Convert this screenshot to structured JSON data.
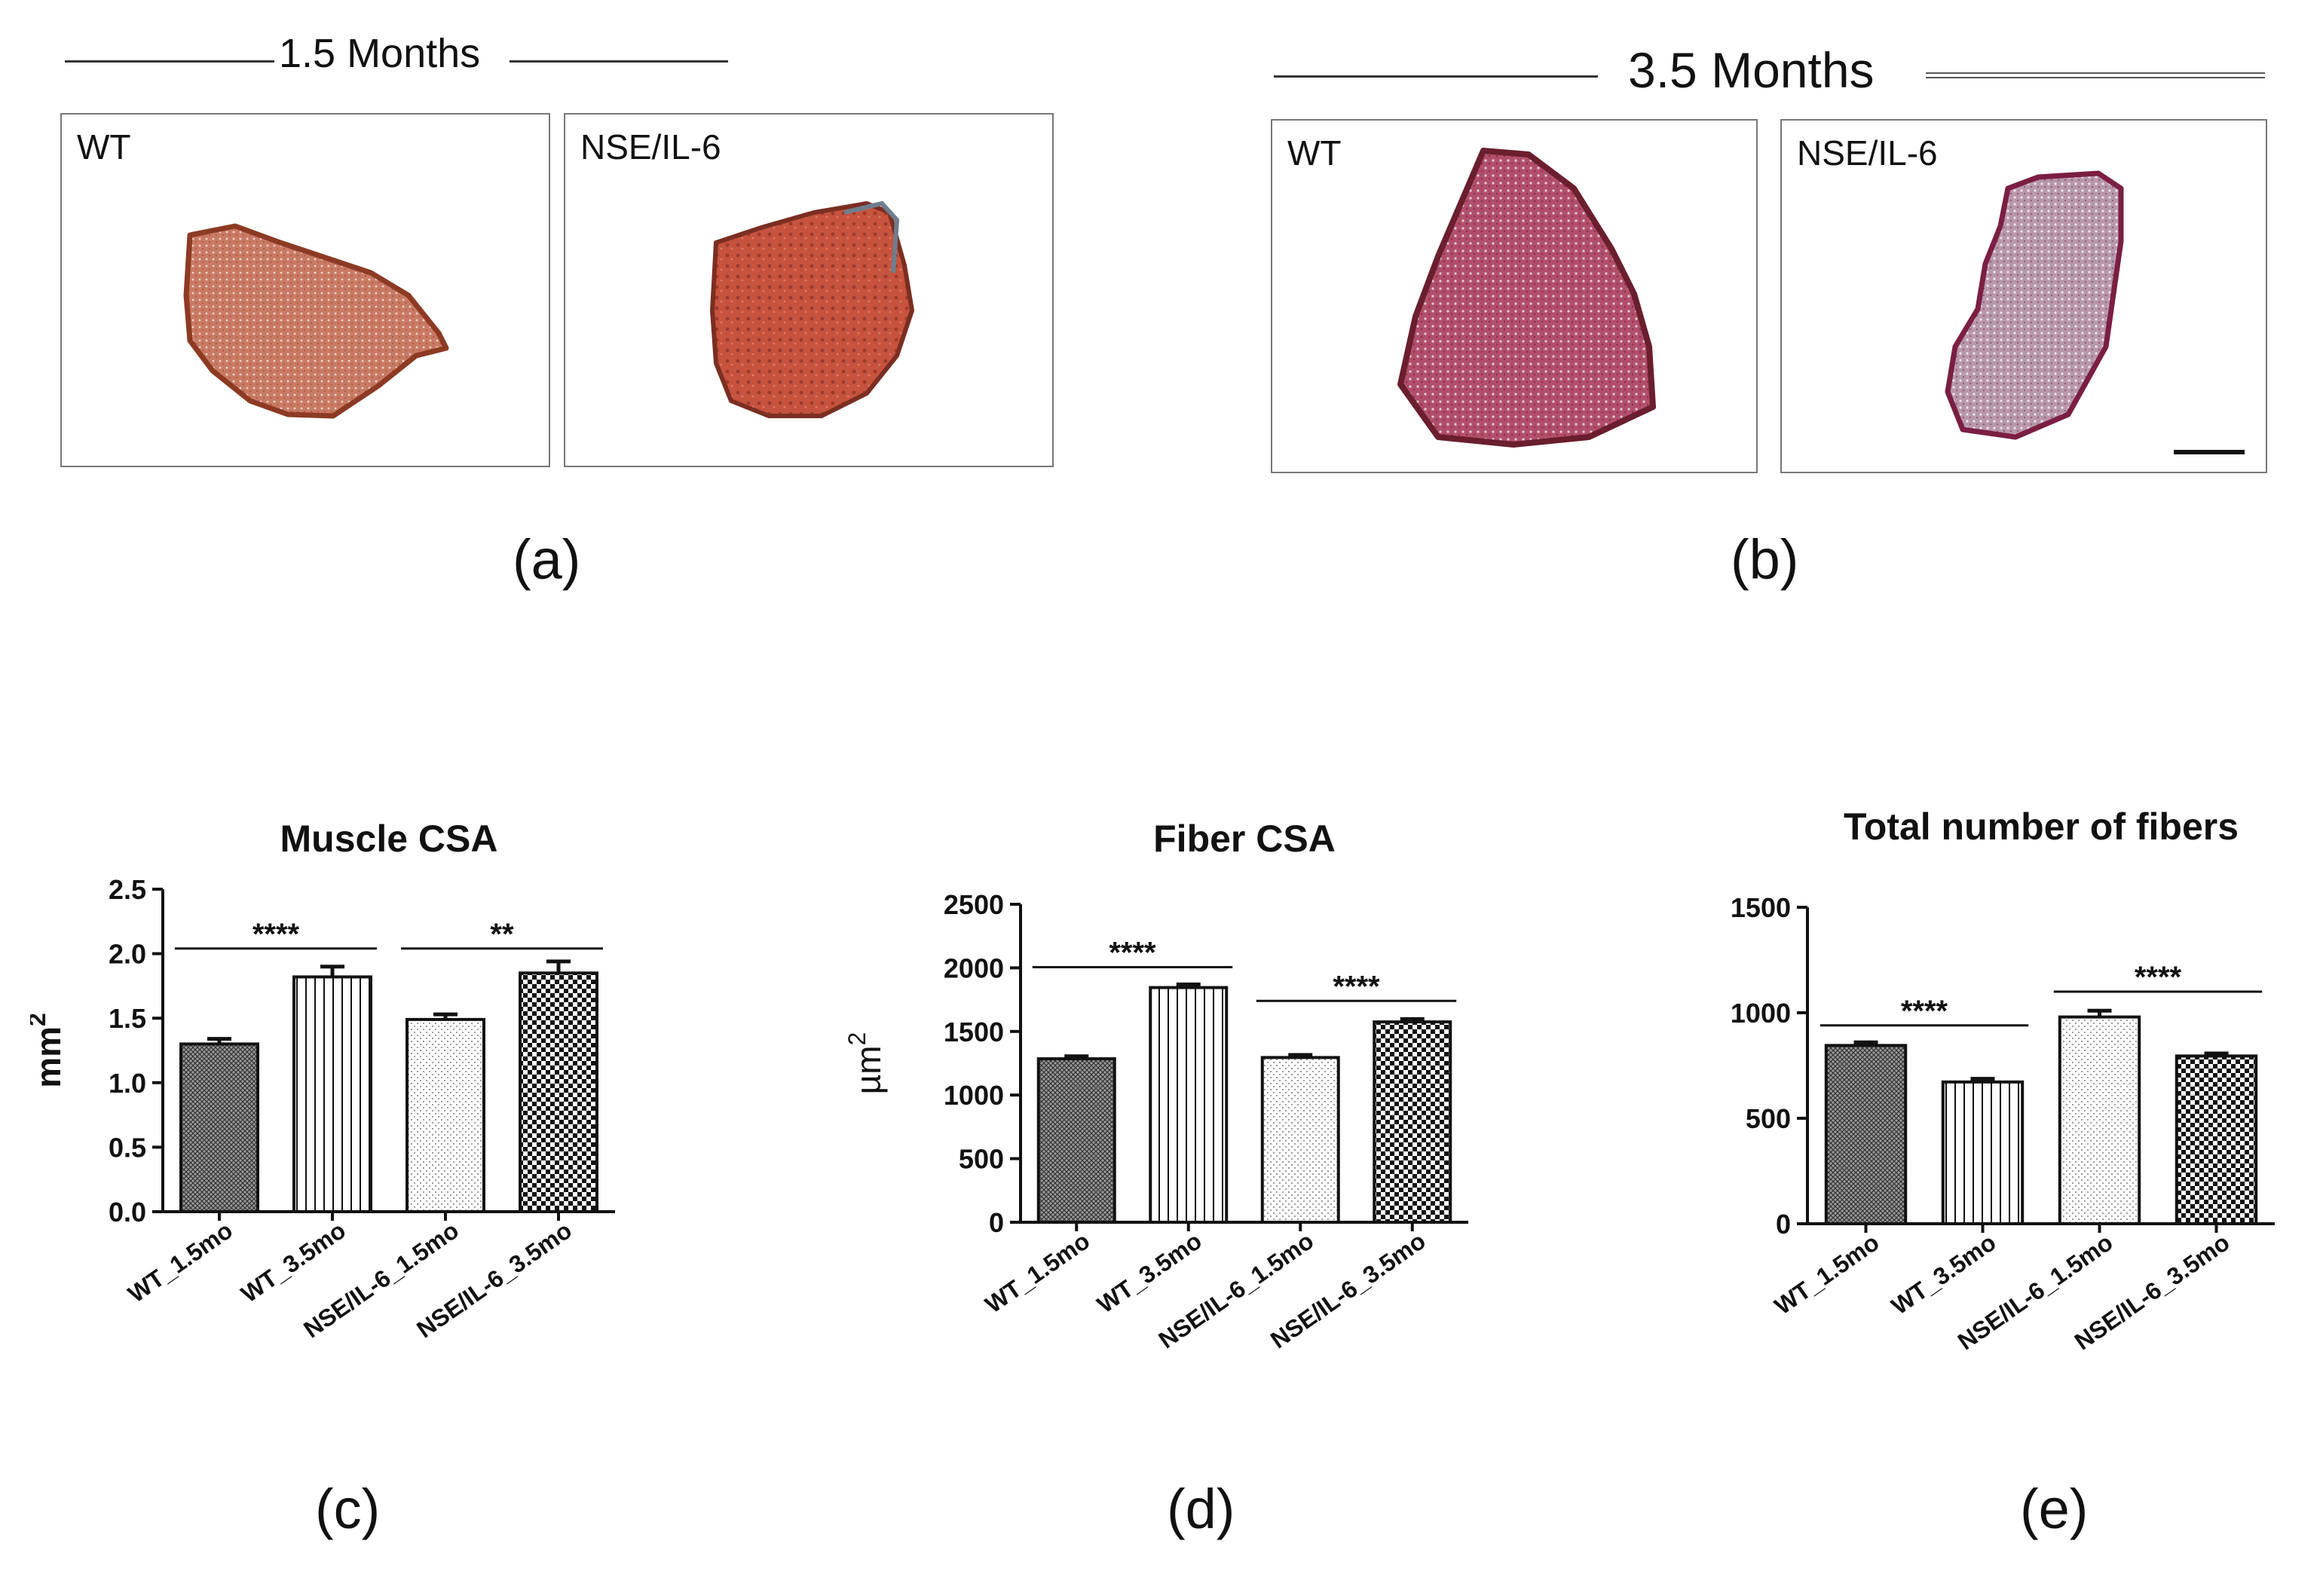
{
  "figure": {
    "panel_a": {
      "header": "1.5 Months",
      "images": [
        {
          "label": "WT",
          "description": "WT muscle section 1.5 months"
        },
        {
          "label": "NSE/IL-6",
          "description": "NSE/IL-6 muscle section 1.5 months"
        }
      ],
      "sublabel": "(a)"
    },
    "panel_b": {
      "header": "3.5 Months",
      "images": [
        {
          "label": "WT",
          "description": "WT muscle section 3.5 months"
        },
        {
          "label": "NSE/IL-6",
          "description": "NSE/IL-6 muscle section 3.5 months"
        }
      ],
      "sublabel": "(b)"
    },
    "sublabels": {
      "c": "(c)",
      "d": "(d)",
      "e": "(e)"
    }
  },
  "colors": {
    "bar_fill": "#ffffff",
    "bar_stroke": "#111111",
    "tissue_a": "#c46a50",
    "tissue_b": "#a7455f"
  },
  "chart_data": [
    {
      "id": "c",
      "type": "bar",
      "title": "Muscle CSA",
      "xlabel": "",
      "ylabel": "mm2",
      "ylabel_base": "mm",
      "ylabel_sup": "2",
      "categories": [
        "WT_1.5mo",
        "WT_3.5mo",
        "NSE/IL-6_1.5mo",
        "NSE/IL-6_3.5mo"
      ],
      "values": [
        1.3,
        1.82,
        1.49,
        1.85
      ],
      "errors": [
        0.04,
        0.08,
        0.04,
        0.09
      ],
      "patterns": [
        "fine-crosshatch",
        "vertical-lines",
        "dots",
        "checker"
      ],
      "ylim": [
        0,
        2.5
      ],
      "yticks": [
        0.0,
        0.5,
        1.0,
        1.5,
        2.0,
        2.5
      ],
      "ytick_labels": [
        "0.0",
        "0.5",
        "1.0",
        "1.5",
        "2.0",
        "2.5"
      ],
      "significance": [
        {
          "from": 0,
          "to": 1,
          "y": 2.04,
          "label": "****"
        },
        {
          "from": 2,
          "to": 3,
          "y": 2.04,
          "label": "**"
        }
      ]
    },
    {
      "id": "d",
      "type": "bar",
      "title": "Fiber CSA",
      "xlabel": "",
      "ylabel": "µm2",
      "ylabel_base": "µm",
      "ylabel_sup": "2",
      "categories": [
        "WT_1.5mo",
        "WT_3.5mo",
        "NSE/IL-6_1.5mo",
        "NSE/IL-6_3.5mo"
      ],
      "values": [
        1285,
        1845,
        1295,
        1575
      ],
      "errors": [
        20,
        25,
        20,
        22
      ],
      "patterns": [
        "fine-crosshatch",
        "vertical-lines",
        "dots",
        "checker"
      ],
      "ylim": [
        0,
        2500
      ],
      "yticks": [
        0,
        500,
        1000,
        1500,
        2000,
        2500
      ],
      "ytick_labels": [
        "0",
        "500",
        "1000",
        "1500",
        "2000",
        "2500"
      ],
      "significance": [
        {
          "from": 0,
          "to": 1,
          "y": 2005,
          "label": "****"
        },
        {
          "from": 2,
          "to": 3,
          "y": 1740,
          "label": "****"
        }
      ]
    },
    {
      "id": "e",
      "type": "bar",
      "title": "Total number of fibers",
      "xlabel": "",
      "ylabel": "",
      "ylabel_base": "",
      "ylabel_sup": "",
      "categories": [
        "WT_1.5mo",
        "WT_3.5mo",
        "NSE/IL-6_1.5mo",
        "NSE/IL-6_3.5mo"
      ],
      "values": [
        845,
        672,
        980,
        795
      ],
      "errors": [
        15,
        15,
        30,
        12
      ],
      "patterns": [
        "fine-crosshatch",
        "vertical-lines",
        "dots",
        "checker"
      ],
      "ylim": [
        0,
        1500
      ],
      "yticks": [
        0,
        500,
        1000,
        1500
      ],
      "ytick_labels": [
        "0",
        "500",
        "1000",
        "1500"
      ],
      "significance": [
        {
          "from": 0,
          "to": 1,
          "y": 940,
          "label": "****"
        },
        {
          "from": 2,
          "to": 3,
          "y": 1100,
          "label": "****"
        }
      ]
    }
  ]
}
